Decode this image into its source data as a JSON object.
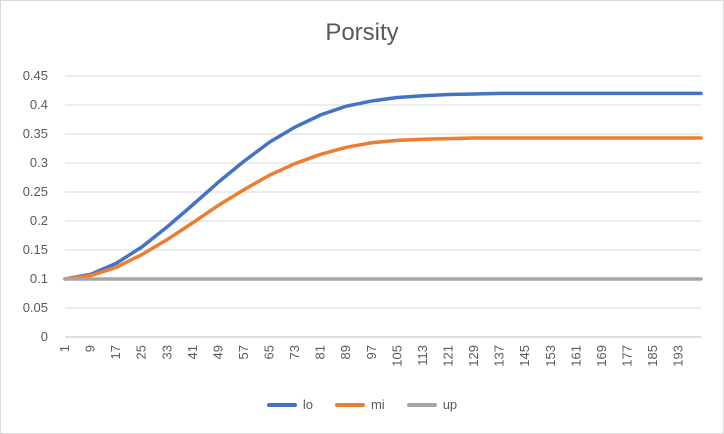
{
  "chart_data": {
    "type": "line",
    "title": "Porsity",
    "xlabel": "",
    "ylabel": "",
    "x_range": [
      1,
      200
    ],
    "x_tick_labels": [
      "1",
      "9",
      "17",
      "25",
      "33",
      "41",
      "49",
      "57",
      "65",
      "73",
      "81",
      "89",
      "97",
      "105",
      "113",
      "121",
      "129",
      "137",
      "145",
      "153",
      "161",
      "169",
      "177",
      "185",
      "193"
    ],
    "ylim": [
      0,
      0.45
    ],
    "y_tick_labels": [
      "0",
      "0.05",
      "0.1",
      "0.15",
      "0.2",
      "0.25",
      "0.3",
      "0.35",
      "0.4",
      "0.45"
    ],
    "grid": "horizontal",
    "legend_position": "bottom",
    "series": [
      {
        "name": "lo",
        "color": "#4472c4",
        "x": [
          1,
          9,
          17,
          25,
          33,
          41,
          49,
          57,
          65,
          73,
          81,
          89,
          97,
          105,
          113,
          121,
          129,
          137,
          145,
          153,
          161,
          169,
          177,
          185,
          193,
          200
        ],
        "values": [
          0.1,
          0.108,
          0.127,
          0.155,
          0.19,
          0.228,
          0.267,
          0.303,
          0.336,
          0.362,
          0.383,
          0.398,
          0.407,
          0.413,
          0.416,
          0.418,
          0.419,
          0.42,
          0.42,
          0.42,
          0.42,
          0.42,
          0.42,
          0.42,
          0.42,
          0.42
        ]
      },
      {
        "name": "mi",
        "color": "#ed7d31",
        "x": [
          1,
          9,
          17,
          25,
          33,
          41,
          49,
          57,
          65,
          73,
          81,
          89,
          97,
          105,
          113,
          121,
          129,
          137,
          145,
          153,
          161,
          169,
          177,
          185,
          193,
          200
        ],
        "values": [
          0.1,
          0.106,
          0.12,
          0.142,
          0.168,
          0.197,
          0.227,
          0.254,
          0.279,
          0.299,
          0.315,
          0.327,
          0.335,
          0.339,
          0.341,
          0.342,
          0.343,
          0.343,
          0.343,
          0.343,
          0.343,
          0.343,
          0.343,
          0.343,
          0.343,
          0.343
        ]
      },
      {
        "name": "up",
        "color": "#a5a5a5",
        "x": [
          1,
          9,
          17,
          25,
          33,
          41,
          49,
          57,
          65,
          73,
          81,
          89,
          97,
          105,
          113,
          121,
          129,
          137,
          145,
          153,
          161,
          169,
          177,
          185,
          193,
          200
        ],
        "values": [
          0.1,
          0.1,
          0.1,
          0.1,
          0.1,
          0.1,
          0.1,
          0.1,
          0.1,
          0.1,
          0.1,
          0.1,
          0.1,
          0.1,
          0.1,
          0.1,
          0.1,
          0.1,
          0.1,
          0.1,
          0.1,
          0.1,
          0.1,
          0.1,
          0.1,
          0.1
        ]
      }
    ]
  }
}
